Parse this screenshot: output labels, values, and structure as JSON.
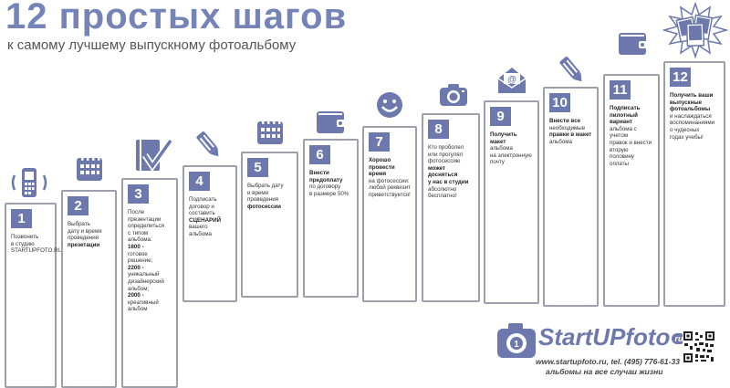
{
  "header": {
    "title": "12 простых шагов",
    "subtitle": "к самому лучшему выпускному фотоальбому"
  },
  "colors": {
    "accent": "#6d79ad",
    "border": "#9da0ab",
    "text": "#333333"
  },
  "steps": [
    {
      "num": "1",
      "icon": "phone-icon",
      "lines": [
        {
          "t": "Позвонить"
        },
        {
          "t": "в студию"
        },
        {
          "t": "STARTUPFOTO.RU"
        }
      ]
    },
    {
      "num": "2",
      "icon": "calendar-icon",
      "lines": [
        {
          "t": "Выбрать"
        },
        {
          "t": "дату и время"
        },
        {
          "t": "проведения"
        },
        {
          "t": "презетации",
          "b": true
        }
      ]
    },
    {
      "num": "3",
      "icon": "checkmark-icon",
      "lines": [
        {
          "t": "После"
        },
        {
          "t": "презентации"
        },
        {
          "t": "определиться"
        },
        {
          "t": "с типом альбома:"
        },
        {
          "t": "1600 -",
          "b": true
        },
        {
          "t": "готовое решение;"
        },
        {
          "t": "2200 -",
          "b": true
        },
        {
          "t": "уникальный"
        },
        {
          "t": "дизайнерский"
        },
        {
          "t": "альбом;"
        },
        {
          "t": "2000 -",
          "b": true
        },
        {
          "t": "креативный"
        },
        {
          "t": "альбом"
        }
      ]
    },
    {
      "num": "4",
      "icon": "pencil-icon",
      "lines": [
        {
          "t": "Подписать"
        },
        {
          "t": "договор и составить"
        },
        {
          "t": "СЦЕНАРИЙ",
          "b": true
        },
        {
          "t": "вашего альбома"
        }
      ]
    },
    {
      "num": "5",
      "icon": "calendar-icon",
      "lines": [
        {
          "t": "Выбрать дату"
        },
        {
          "t": "и время"
        },
        {
          "t": "проведения"
        },
        {
          "t": "фотосессии",
          "b": true
        }
      ]
    },
    {
      "num": "6",
      "icon": "wallet-icon",
      "lines": [
        {
          "t": "Внести",
          "b": true
        },
        {
          "t": "предоплату",
          "b": true
        },
        {
          "t": "по договору"
        },
        {
          "t": "в размере 50%"
        }
      ]
    },
    {
      "num": "7",
      "icon": "smiley-icon",
      "lines": [
        {
          "t": "Хорошо",
          "b": true
        },
        {
          "t": "провести время",
          "b": true
        },
        {
          "t": "на фотосессии:"
        },
        {
          "t": "любой реквизит"
        },
        {
          "t": "приветствуется!"
        }
      ]
    },
    {
      "num": "8",
      "icon": "camera-icon",
      "lines": [
        {
          "t": "Кто проболел"
        },
        {
          "t": "или прогулял"
        },
        {
          "t": "фотосессию"
        },
        {
          "t": "может досняться",
          "b": true
        },
        {
          "t": "у нас в студии",
          "b": true
        },
        {
          "t": "абсолютно"
        },
        {
          "t": "бесплатно!"
        }
      ]
    },
    {
      "num": "9",
      "icon": "email-icon",
      "lines": [
        {
          "t": "Получить",
          "b": true
        },
        {
          "t": "макет",
          "b": true
        },
        {
          "t": "альбома"
        },
        {
          "t": "на электронную"
        },
        {
          "t": "почту"
        }
      ]
    },
    {
      "num": "10",
      "icon": "pencil-icon",
      "lines": [
        {
          "t": "Внести все",
          "b": true
        },
        {
          "t": "необходимые"
        },
        {
          "t": "правки в макет",
          "b": true
        },
        {
          "t": "альбома"
        }
      ]
    },
    {
      "num": "11",
      "icon": "wallet-icon",
      "lines": [
        {
          "t": "Подписать",
          "b": true
        },
        {
          "t": "пилотный",
          "b": true
        },
        {
          "t": "вариант",
          "b": true
        },
        {
          "t": "альбома с учетом"
        },
        {
          "t": "правок и внести"
        },
        {
          "t": "вторую половину"
        },
        {
          "t": "оплаты"
        }
      ]
    },
    {
      "num": "12",
      "icon": "photos-icon",
      "lines": [
        {
          "t": "Получить ваши",
          "b": true
        },
        {
          "t": "выпускные",
          "b": true
        },
        {
          "t": "фотоальбомы",
          "b": true
        },
        {
          "t": "и наслаждаться"
        },
        {
          "t": "воспоминаниями"
        },
        {
          "t": "о чудесных"
        },
        {
          "t": "годах учебы!"
        }
      ]
    }
  ],
  "footer": {
    "logo": "StartUPfoto",
    "logo_suffix": "ru",
    "url_line": "www.startupfoto.ru, tel. (495) 776-61-33",
    "slogan": "альбомы на все случаи жизни"
  }
}
